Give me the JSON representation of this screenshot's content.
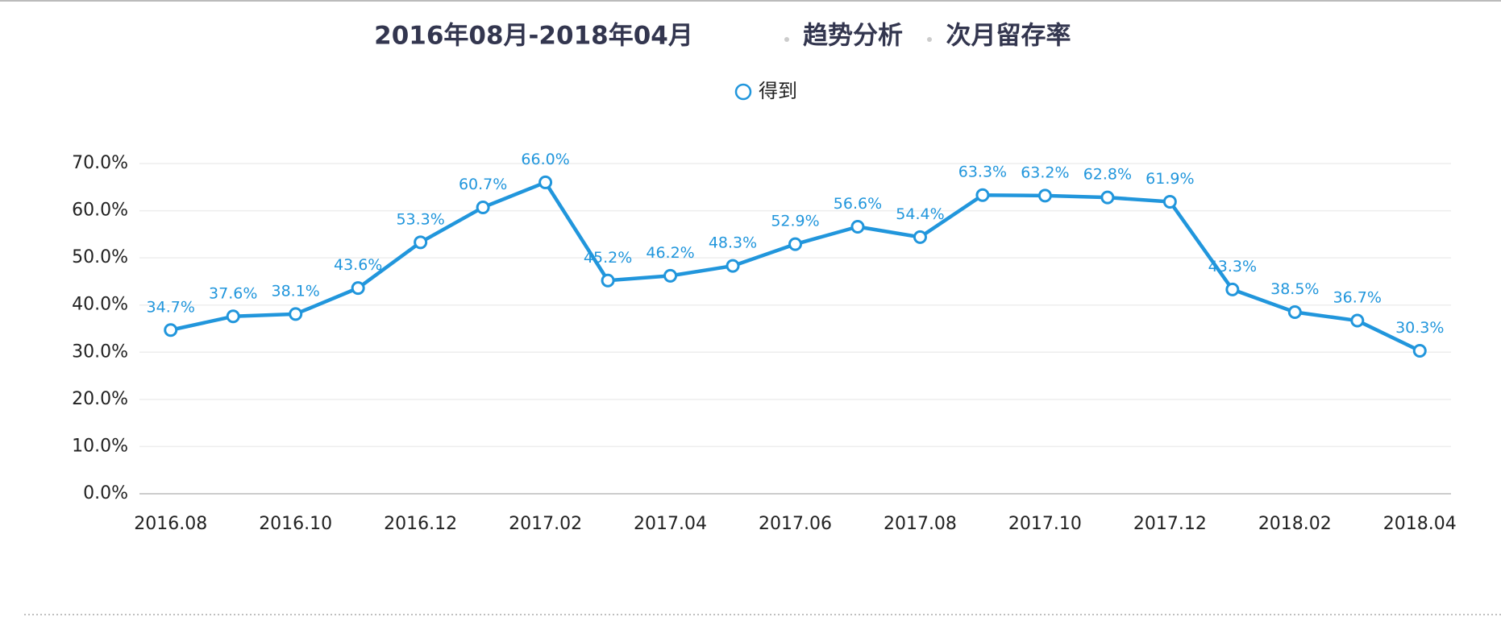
{
  "chart_data": {
    "type": "line",
    "title": [
      "2016年08月-2018年04月",
      "趋势分析",
      "次月留存率"
    ],
    "categories": [
      "2016.08",
      null,
      "2016.10",
      null,
      "2016.12",
      null,
      "2017.02",
      null,
      "2017.04",
      null,
      "2017.06",
      null,
      "2017.08",
      null,
      "2017.10",
      null,
      "2017.12",
      null,
      "2018.02",
      null,
      "2018.04"
    ],
    "series": [
      {
        "name": "得到",
        "color": "#2196dc",
        "values": [
          34.7,
          37.6,
          38.1,
          43.6,
          53.3,
          60.7,
          66.0,
          45.2,
          46.2,
          48.3,
          52.9,
          56.6,
          54.4,
          63.3,
          63.2,
          62.8,
          61.9,
          43.3,
          38.5,
          36.7,
          30.3
        ],
        "value_labels": [
          "34.7%",
          "37.6%",
          "38.1%",
          "43.6%",
          "53.3%",
          "60.7%",
          "66.0%",
          "45.2%",
          "46.2%",
          "48.3%",
          "52.9%",
          "56.6%",
          "54.4%",
          "63.3%",
          "63.2%",
          "62.8%",
          "61.9%",
          "43.3%",
          "38.5%",
          "36.7%",
          "30.3%"
        ]
      }
    ],
    "ylim": [
      0,
      70
    ],
    "yticks": [
      {
        "value": 0,
        "label": "0.0%"
      },
      {
        "value": 10,
        "label": "10.0%"
      },
      {
        "value": 20,
        "label": "20.0%"
      },
      {
        "value": 30,
        "label": "30.0%"
      },
      {
        "value": 40,
        "label": "40.0%"
      },
      {
        "value": 50,
        "label": "50.0%"
      },
      {
        "value": 60,
        "label": "60.0%"
      },
      {
        "value": 70,
        "label": "70.0%"
      }
    ],
    "grid": true,
    "legend": "top"
  }
}
